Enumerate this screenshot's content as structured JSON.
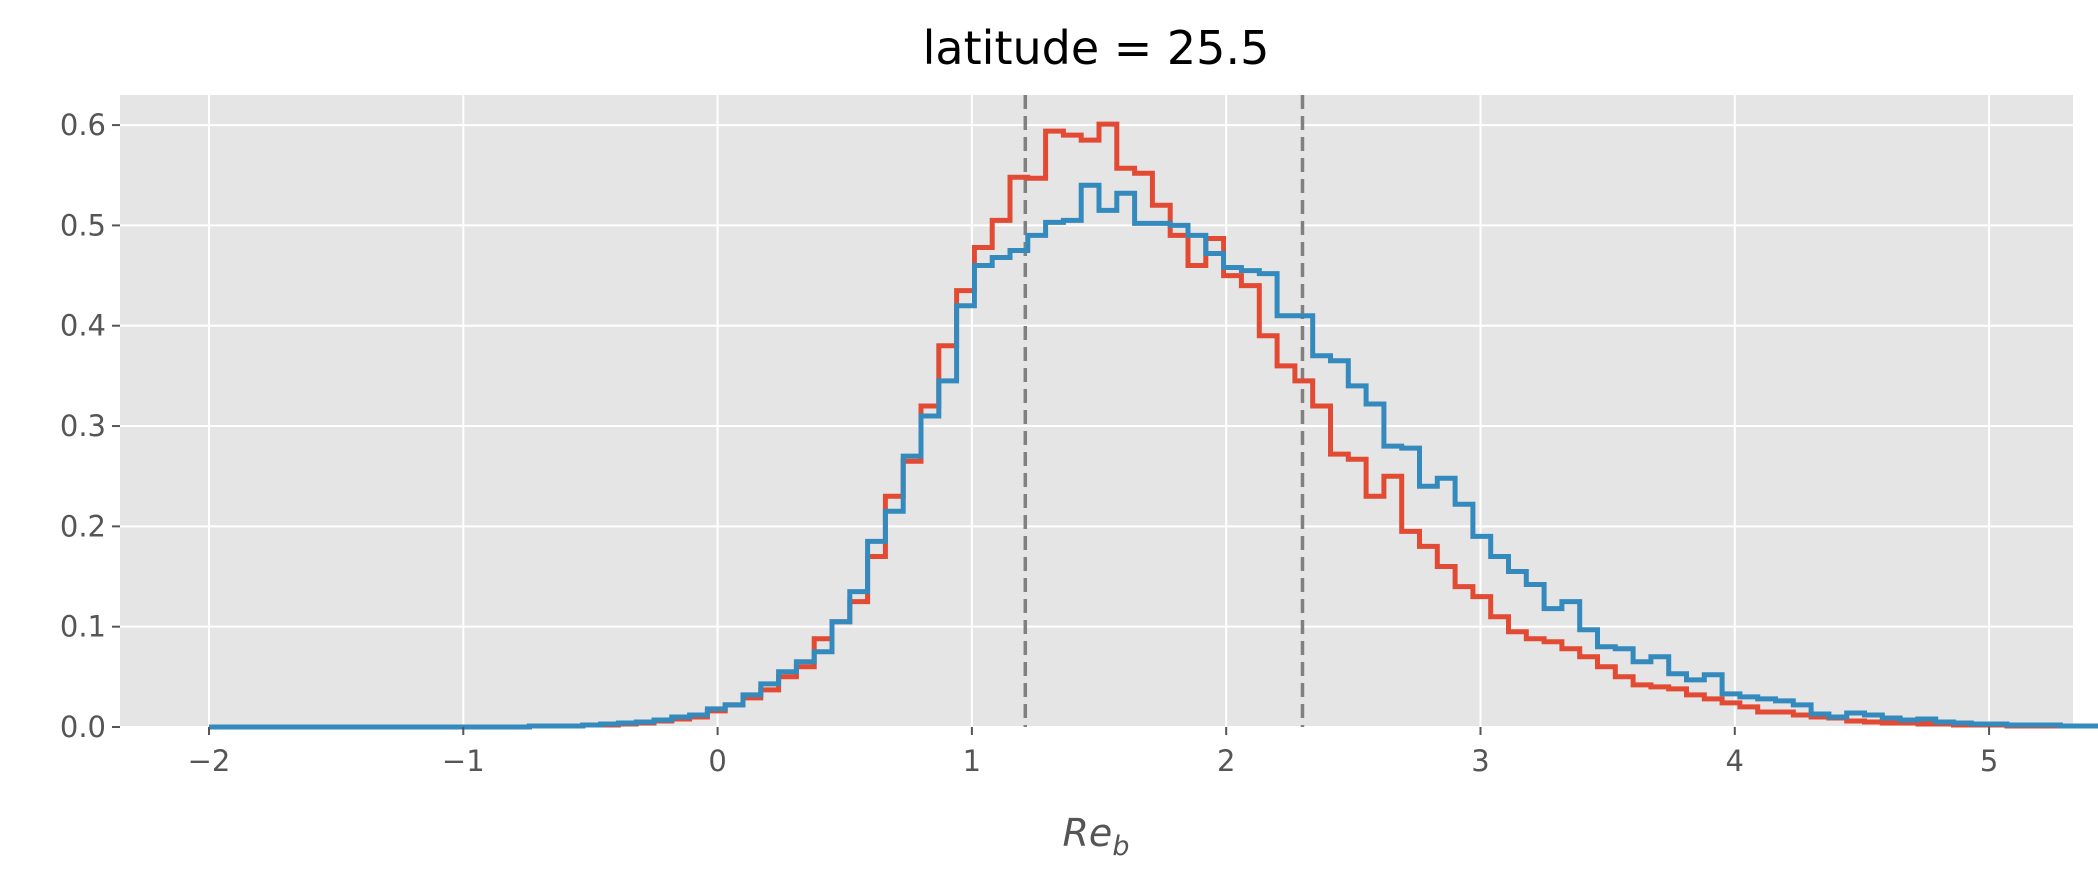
{
  "chart_data": {
    "type": "histogram-step",
    "title": "latitude = 25.5",
    "xlabel": "Re",
    "xlabel_subscript": "b",
    "xlim": [
      -2.35,
      5.33
    ],
    "ylim": [
      0,
      0.63
    ],
    "xticks": [
      -2,
      -1,
      0,
      1,
      2,
      3,
      4,
      5
    ],
    "xtick_labels": [
      "−2",
      "−1",
      "0",
      "1",
      "2",
      "3",
      "4",
      "5"
    ],
    "yticks": [
      0.0,
      0.1,
      0.2,
      0.3,
      0.4,
      0.5,
      0.6
    ],
    "ytick_labels": [
      "0.0",
      "0.1",
      "0.2",
      "0.3",
      "0.4",
      "0.5",
      "0.6"
    ],
    "grid": true,
    "background": "#e5e5e5",
    "vlines": [
      {
        "x": 1.21,
        "color": "#808080",
        "style": "dashed"
      },
      {
        "x": 2.3,
        "color": "#808080",
        "style": "dashed"
      }
    ],
    "bin_start": -2.0,
    "bin_width": 0.07,
    "series": [
      {
        "color": "#e24a33",
        "values": [
          0,
          0,
          0,
          0,
          0,
          0,
          0,
          0,
          0,
          0,
          0,
          0,
          0,
          0,
          0,
          0,
          0,
          0,
          0.001,
          0.001,
          0.001,
          0.002,
          0.002,
          0.003,
          0.004,
          0.006,
          0.008,
          0.01,
          0.016,
          0.022,
          0.029,
          0.037,
          0.05,
          0.06,
          0.088,
          0.105,
          0.125,
          0.17,
          0.23,
          0.265,
          0.32,
          0.38,
          0.435,
          0.478,
          0.505,
          0.548,
          0.547,
          0.594,
          0.59,
          0.585,
          0.601,
          0.557,
          0.552,
          0.52,
          0.49,
          0.46,
          0.487,
          0.45,
          0.44,
          0.39,
          0.36,
          0.345,
          0.32,
          0.272,
          0.267,
          0.23,
          0.25,
          0.195,
          0.18,
          0.16,
          0.14,
          0.13,
          0.11,
          0.095,
          0.088,
          0.085,
          0.078,
          0.07,
          0.06,
          0.05,
          0.042,
          0.04,
          0.038,
          0.032,
          0.028,
          0.024,
          0.02,
          0.015,
          0.015,
          0.012,
          0.01,
          0.009,
          0.006,
          0.005,
          0.004,
          0.004,
          0.003,
          0.003,
          0.002,
          0.002,
          0.002,
          0.001,
          0.001,
          0.001,
          0.001,
          0.001,
          0.001,
          0.001,
          0.001,
          0.001
        ]
      },
      {
        "color": "#348abd",
        "values": [
          0,
          0,
          0,
          0,
          0,
          0,
          0,
          0,
          0,
          0,
          0,
          0,
          0,
          0,
          0,
          0,
          0,
          0,
          0.001,
          0.001,
          0.001,
          0.002,
          0.003,
          0.004,
          0.005,
          0.007,
          0.01,
          0.012,
          0.018,
          0.022,
          0.032,
          0.043,
          0.055,
          0.065,
          0.075,
          0.105,
          0.135,
          0.185,
          0.215,
          0.27,
          0.31,
          0.345,
          0.42,
          0.46,
          0.468,
          0.475,
          0.49,
          0.503,
          0.505,
          0.54,
          0.515,
          0.532,
          0.502,
          0.502,
          0.5,
          0.49,
          0.472,
          0.458,
          0.455,
          0.452,
          0.41,
          0.41,
          0.37,
          0.365,
          0.34,
          0.322,
          0.28,
          0.278,
          0.24,
          0.248,
          0.222,
          0.19,
          0.17,
          0.155,
          0.142,
          0.118,
          0.125,
          0.097,
          0.08,
          0.078,
          0.065,
          0.07,
          0.053,
          0.047,
          0.052,
          0.033,
          0.03,
          0.028,
          0.026,
          0.022,
          0.013,
          0.01,
          0.014,
          0.012,
          0.009,
          0.007,
          0.008,
          0.005,
          0.004,
          0.003,
          0.003,
          0.002,
          0.002,
          0.002,
          0.001,
          0.001,
          0.001,
          0.001,
          0.001,
          0.001
        ]
      }
    ]
  }
}
